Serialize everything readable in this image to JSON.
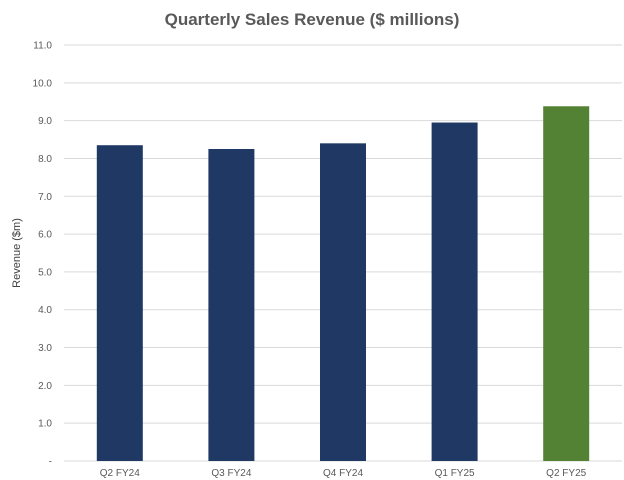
{
  "chart_data": {
    "type": "bar",
    "title": "Quarterly Sales Revenue ($ millions)",
    "xlabel": "",
    "ylabel": "Revenue ($m)",
    "categories": [
      "Q2 FY24",
      "Q3 FY24",
      "Q4 FY24",
      "Q1 FY25",
      "Q2 FY25"
    ],
    "values": [
      8.35,
      8.25,
      8.4,
      8.95,
      9.38
    ],
    "ylim": [
      0,
      11
    ],
    "yticks": [
      "-",
      "1.0",
      "2.0",
      "3.0",
      "4.0",
      "5.0",
      "6.0",
      "7.0",
      "8.0",
      "9.0",
      "10.0",
      "11.0"
    ],
    "grid": true,
    "legend": "none",
    "colors": {
      "default_bar": "#1f3864",
      "highlight_bar": "#548235",
      "highlight_category": "Q2 FY25"
    }
  }
}
